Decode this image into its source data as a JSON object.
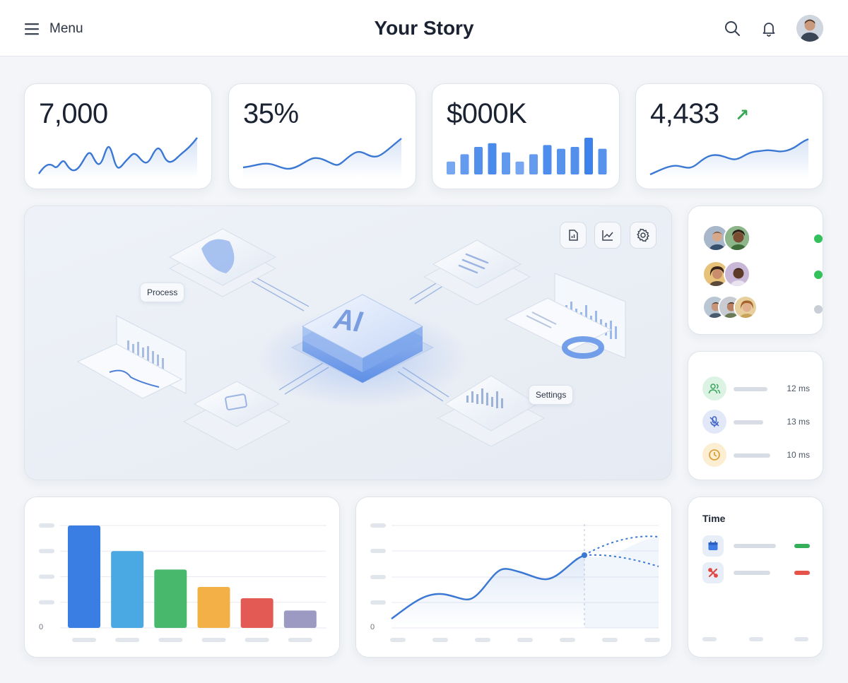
{
  "header": {
    "menu_label": "Menu",
    "title": "Your Story",
    "icons": [
      "search-icon",
      "bell-icon"
    ],
    "avatar": "user-avatar"
  },
  "kpis": [
    {
      "value": "7,000",
      "spark": "wave",
      "color": "#3a78d4"
    },
    {
      "value": "35%",
      "spark": "line",
      "color": "#3a78d4"
    },
    {
      "value": "$000K",
      "spark": "bars",
      "color": "#3d82ea",
      "bars": [
        0.35,
        0.55,
        0.75,
        0.85,
        0.6,
        0.35,
        0.55,
        0.8,
        0.7,
        0.75,
        1.0,
        0.7
      ]
    },
    {
      "value": "4,433",
      "trend": "↗",
      "spark": "line2",
      "color": "#3a78d4"
    }
  ],
  "hero": {
    "center_label": "AI",
    "chips": [
      "Process",
      "Settings"
    ],
    "tools": [
      "document-chart-icon",
      "line-chart-icon",
      "gear-icon"
    ]
  },
  "team": {
    "rows": [
      {
        "status_color": "#34c05a"
      },
      {
        "status_color": "#34c05a"
      },
      {
        "status_color": "#c9ced6"
      }
    ]
  },
  "latency": {
    "rows": [
      {
        "icon": "users-icon",
        "value": "12 ms",
        "bg": "#dcf3e4",
        "fg": "#3aa55d"
      },
      {
        "icon": "mic-off-icon",
        "value": "13 ms",
        "bg": "#e2e8f8",
        "fg": "#3b5fc9"
      },
      {
        "icon": "clock-icon",
        "value": "10 ms",
        "bg": "#fbeed2",
        "fg": "#d99a26"
      }
    ]
  },
  "time_card": {
    "title": "Time",
    "rows": [
      {
        "icon": "calendar-icon",
        "status_color": "#34b05a"
      },
      {
        "icon": "tools-icon",
        "status_color": "#e5534b"
      }
    ]
  },
  "bar_chart": {
    "zero_label": "0",
    "chart_data": {
      "type": "bar",
      "values": [
        100,
        75,
        57,
        40,
        29,
        17
      ],
      "colors": [
        "#3b7ee3",
        "#4aa8e2",
        "#48b86c",
        "#f2b047",
        "#e35a55",
        "#9c9ac2"
      ],
      "ylim": [
        0,
        100
      ],
      "grid": true
    }
  },
  "line_chart": {
    "zero_label": "0",
    "chart_data": {
      "type": "line",
      "color": "#3a78d4"
    }
  }
}
